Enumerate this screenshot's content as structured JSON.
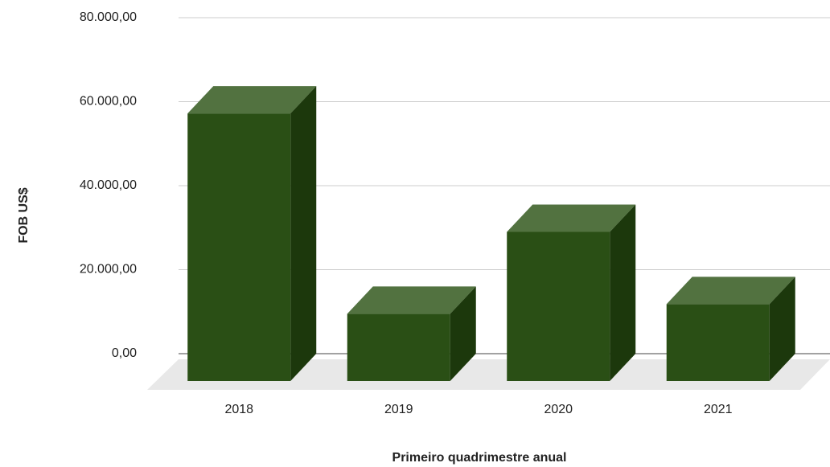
{
  "chart_data": {
    "type": "bar3d",
    "y_label": "FOB US$",
    "x_label": "Primeiro quadrimestre anual",
    "categories": [
      "2018",
      "2019",
      "2020",
      "2021"
    ],
    "values": [
      63700,
      16000,
      35500,
      18300
    ],
    "colors": {
      "front": "#2a4f15",
      "top": "#527240",
      "side": "#1c380c"
    },
    "ylim": [
      0,
      80000
    ],
    "yticks": [
      {
        "value": 0,
        "label": "0,00"
      },
      {
        "value": 20000,
        "label": "20.000,00"
      },
      {
        "value": 40000,
        "label": "40.000,00"
      },
      {
        "value": 60000,
        "label": "60.000,00"
      },
      {
        "value": 80000,
        "label": "80.000,00"
      }
    ],
    "grid": true
  }
}
